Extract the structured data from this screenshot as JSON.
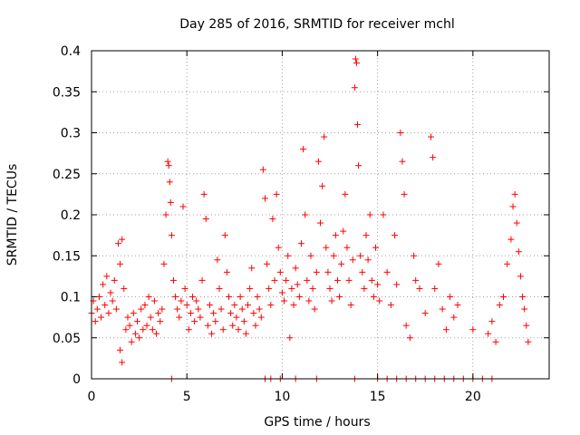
{
  "chart_data": {
    "type": "scatter",
    "title": "Day 285 of 2016, SRMTID for receiver mchl",
    "xlabel": "GPS time / hours",
    "ylabel": "SRMTID / TECUs",
    "xlim": [
      0,
      24
    ],
    "ylim": [
      0,
      0.4
    ],
    "x_ticks": [
      0,
      5,
      10,
      15,
      20
    ],
    "y_ticks": [
      0,
      0.05,
      0.1,
      0.15,
      0.2,
      0.25,
      0.3,
      0.35,
      0.4
    ],
    "grid": true,
    "marker": "plus",
    "series": [
      {
        "name": "SRMTID",
        "color": "#ff0000",
        "points": [
          [
            0.0,
            0.08
          ],
          [
            0.1,
            0.095
          ],
          [
            0.2,
            0.07
          ],
          [
            0.3,
            0.085
          ],
          [
            0.4,
            0.1
          ],
          [
            0.5,
            0.075
          ],
          [
            0.6,
            0.115
          ],
          [
            0.7,
            0.09
          ],
          [
            0.8,
            0.125
          ],
          [
            0.9,
            0.08
          ],
          [
            1.0,
            0.105
          ],
          [
            1.1,
            0.095
          ],
          [
            1.2,
            0.12
          ],
          [
            1.3,
            0.085
          ],
          [
            1.4,
            0.165
          ],
          [
            1.5,
            0.14
          ],
          [
            1.6,
            0.17
          ],
          [
            1.7,
            0.11
          ],
          [
            1.5,
            0.035
          ],
          [
            1.6,
            0.02
          ],
          [
            1.8,
            0.06
          ],
          [
            1.9,
            0.075
          ],
          [
            2.0,
            0.065
          ],
          [
            2.1,
            0.045
          ],
          [
            2.2,
            0.08
          ],
          [
            2.3,
            0.055
          ],
          [
            2.4,
            0.07
          ],
          [
            2.5,
            0.05
          ],
          [
            2.6,
            0.085
          ],
          [
            2.7,
            0.06
          ],
          [
            2.8,
            0.09
          ],
          [
            2.9,
            0.065
          ],
          [
            3.0,
            0.1
          ],
          [
            3.1,
            0.075
          ],
          [
            3.2,
            0.06
          ],
          [
            3.3,
            0.095
          ],
          [
            3.4,
            0.055
          ],
          [
            3.5,
            0.08
          ],
          [
            3.6,
            0.07
          ],
          [
            3.7,
            0.085
          ],
          [
            3.8,
            0.14
          ],
          [
            3.9,
            0.2
          ],
          [
            4.0,
            0.265
          ],
          [
            4.05,
            0.26
          ],
          [
            4.1,
            0.24
          ],
          [
            4.15,
            0.215
          ],
          [
            4.2,
            0.175
          ],
          [
            4.3,
            0.12
          ],
          [
            4.4,
            0.1
          ],
          [
            4.5,
            0.085
          ],
          [
            4.6,
            0.075
          ],
          [
            4.7,
            0.095
          ],
          [
            4.8,
            0.21
          ],
          [
            4.9,
            0.11
          ],
          [
            5.0,
            0.09
          ],
          [
            5.1,
            0.06
          ],
          [
            5.2,
            0.08
          ],
          [
            5.3,
            0.1
          ],
          [
            5.4,
            0.07
          ],
          [
            5.5,
            0.095
          ],
          [
            5.6,
            0.085
          ],
          [
            5.7,
            0.075
          ],
          [
            5.8,
            0.12
          ],
          [
            5.9,
            0.225
          ],
          [
            6.0,
            0.195
          ],
          [
            6.1,
            0.065
          ],
          [
            6.2,
            0.09
          ],
          [
            6.3,
            0.055
          ],
          [
            6.4,
            0.08
          ],
          [
            6.5,
            0.07
          ],
          [
            6.6,
            0.145
          ],
          [
            6.7,
            0.11
          ],
          [
            6.8,
            0.085
          ],
          [
            6.9,
            0.06
          ],
          [
            7.0,
            0.175
          ],
          [
            7.1,
            0.13
          ],
          [
            7.2,
            0.1
          ],
          [
            7.3,
            0.08
          ],
          [
            7.4,
            0.065
          ],
          [
            7.5,
            0.09
          ],
          [
            7.6,
            0.075
          ],
          [
            7.7,
            0.06
          ],
          [
            7.8,
            0.1
          ],
          [
            7.9,
            0.085
          ],
          [
            8.0,
            0.07
          ],
          [
            8.1,
            0.055
          ],
          [
            8.2,
            0.09
          ],
          [
            8.3,
            0.11
          ],
          [
            8.4,
            0.135
          ],
          [
            8.5,
            0.08
          ],
          [
            8.6,
            0.065
          ],
          [
            8.7,
            0.1
          ],
          [
            8.8,
            0.085
          ],
          [
            8.9,
            0.075
          ],
          [
            9.0,
            0.255
          ],
          [
            9.1,
            0.22
          ],
          [
            9.2,
            0.14
          ],
          [
            9.3,
            0.11
          ],
          [
            9.4,
            0.09
          ],
          [
            9.5,
            0.195
          ],
          [
            9.6,
            0.12
          ],
          [
            9.7,
            0.225
          ],
          [
            9.8,
            0.16
          ],
          [
            9.9,
            0.13
          ],
          [
            10.0,
            0.105
          ],
          [
            10.1,
            0.095
          ],
          [
            10.2,
            0.12
          ],
          [
            10.3,
            0.15
          ],
          [
            10.4,
            0.05
          ],
          [
            10.5,
            0.11
          ],
          [
            10.6,
            0.09
          ],
          [
            10.7,
            0.135
          ],
          [
            10.8,
            0.115
          ],
          [
            10.9,
            0.1
          ],
          [
            11.0,
            0.165
          ],
          [
            11.1,
            0.28
          ],
          [
            11.2,
            0.2
          ],
          [
            11.3,
            0.12
          ],
          [
            11.4,
            0.095
          ],
          [
            11.5,
            0.15
          ],
          [
            11.6,
            0.11
          ],
          [
            11.7,
            0.085
          ],
          [
            11.8,
            0.13
          ],
          [
            11.9,
            0.265
          ],
          [
            12.0,
            0.19
          ],
          [
            12.1,
            0.235
          ],
          [
            12.2,
            0.295
          ],
          [
            12.3,
            0.16
          ],
          [
            12.4,
            0.13
          ],
          [
            12.5,
            0.11
          ],
          [
            12.6,
            0.095
          ],
          [
            12.7,
            0.15
          ],
          [
            12.8,
            0.175
          ],
          [
            12.9,
            0.12
          ],
          [
            13.0,
            0.1
          ],
          [
            13.1,
            0.14
          ],
          [
            13.2,
            0.18
          ],
          [
            13.3,
            0.225
          ],
          [
            13.4,
            0.16
          ],
          [
            13.5,
            0.12
          ],
          [
            13.6,
            0.09
          ],
          [
            13.7,
            0.145
          ],
          [
            13.8,
            0.355
          ],
          [
            13.85,
            0.39
          ],
          [
            13.9,
            0.385
          ],
          [
            13.95,
            0.31
          ],
          [
            14.0,
            0.26
          ],
          [
            14.1,
            0.15
          ],
          [
            14.2,
            0.13
          ],
          [
            14.3,
            0.11
          ],
          [
            14.4,
            0.175
          ],
          [
            14.5,
            0.145
          ],
          [
            14.6,
            0.2
          ],
          [
            14.7,
            0.12
          ],
          [
            14.8,
            0.1
          ],
          [
            14.9,
            0.16
          ],
          [
            15.0,
            0.115
          ],
          [
            15.1,
            0.095
          ],
          [
            15.3,
            0.2
          ],
          [
            15.5,
            0.13
          ],
          [
            15.7,
            0.09
          ],
          [
            15.9,
            0.175
          ],
          [
            16.0,
            0.115
          ],
          [
            16.2,
            0.3
          ],
          [
            16.3,
            0.265
          ],
          [
            16.4,
            0.225
          ],
          [
            16.5,
            0.065
          ],
          [
            16.7,
            0.05
          ],
          [
            16.9,
            0.15
          ],
          [
            17.0,
            0.12
          ],
          [
            17.2,
            0.11
          ],
          [
            17.5,
            0.08
          ],
          [
            17.8,
            0.295
          ],
          [
            17.9,
            0.27
          ],
          [
            18.0,
            0.11
          ],
          [
            18.2,
            0.14
          ],
          [
            18.4,
            0.085
          ],
          [
            18.6,
            0.06
          ],
          [
            18.8,
            0.1
          ],
          [
            19.0,
            0.075
          ],
          [
            19.2,
            0.09
          ],
          [
            20.0,
            0.06
          ],
          [
            20.8,
            0.055
          ],
          [
            21.0,
            0.07
          ],
          [
            21.2,
            0.045
          ],
          [
            21.4,
            0.09
          ],
          [
            21.6,
            0.1
          ],
          [
            21.8,
            0.14
          ],
          [
            22.0,
            0.17
          ],
          [
            22.1,
            0.21
          ],
          [
            22.2,
            0.225
          ],
          [
            22.3,
            0.19
          ],
          [
            22.4,
            0.155
          ],
          [
            22.5,
            0.125
          ],
          [
            22.6,
            0.1
          ],
          [
            22.7,
            0.085
          ],
          [
            22.8,
            0.065
          ],
          [
            22.9,
            0.045
          ],
          [
            4.2,
            0.0
          ],
          [
            9.1,
            0.0
          ],
          [
            9.4,
            0.0
          ],
          [
            9.9,
            0.0
          ],
          [
            10.7,
            0.0
          ],
          [
            11.8,
            0.0
          ],
          [
            13.8,
            0.0
          ],
          [
            15.0,
            0.0
          ],
          [
            15.5,
            0.0
          ],
          [
            16.0,
            0.0
          ],
          [
            16.5,
            0.0
          ],
          [
            17.0,
            0.0
          ],
          [
            17.5,
            0.0
          ],
          [
            18.0,
            0.0
          ],
          [
            18.5,
            0.0
          ],
          [
            19.0,
            0.0
          ],
          [
            19.5,
            0.0
          ],
          [
            20.0,
            0.0
          ],
          [
            20.5,
            0.0
          ],
          [
            21.0,
            0.0
          ]
        ]
      }
    ]
  }
}
